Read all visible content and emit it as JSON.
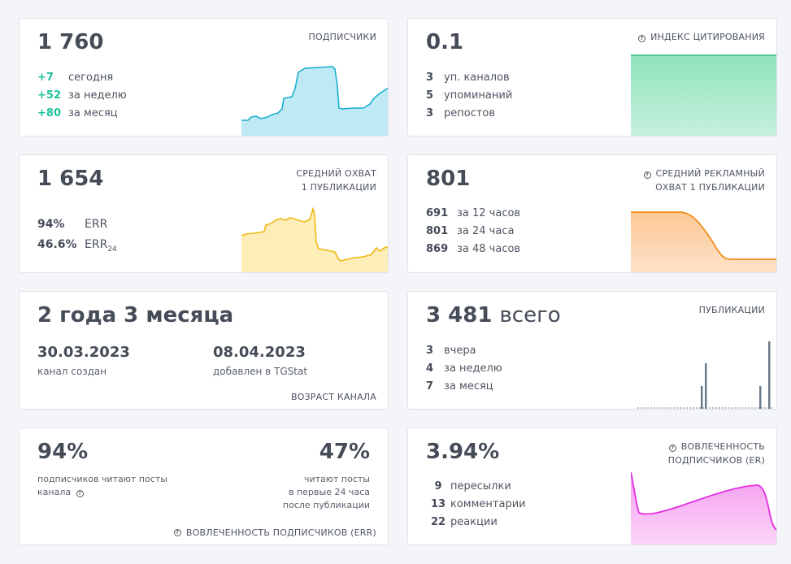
{
  "subscribers": {
    "value": "1 760",
    "title": "ПОДПИСЧИКИ",
    "colors": {
      "line": "#1aaed0",
      "fill": "#a9e3f1"
    },
    "rows": [
      {
        "n": "+7",
        "label": "сегодня"
      },
      {
        "n": "+52",
        "label": "за неделю"
      },
      {
        "n": "+80",
        "label": "за месяц"
      }
    ]
  },
  "citation": {
    "value": "0.1",
    "title": "ИНДЕКС ЦИТИРОВАНИЯ",
    "help_icon": "help-circle-icon",
    "colors": {
      "line": "#37b37e",
      "fill": "#8fe3bd"
    },
    "rows": [
      {
        "n": "3",
        "label": "уп. каналов"
      },
      {
        "n": "5",
        "label": "упоминаний"
      },
      {
        "n": "3",
        "label": "репостов"
      }
    ]
  },
  "avg_reach": {
    "value": "1 654",
    "title_line1": "СРЕДНИЙ ОХВАТ",
    "title_line2": "1 ПУБЛИКАЦИИ",
    "colors": {
      "line": "#efb913",
      "fill": "#fde8a6"
    },
    "rows": [
      {
        "n": "94%",
        "label": "ERR"
      },
      {
        "n": "46.6%",
        "label": "ERR",
        "sub": "24"
      }
    ]
  },
  "ad_reach": {
    "value": "801",
    "title_line1": "СРЕДНИЙ РЕКЛАМНЫЙ",
    "title_line2": "ОХВАТ 1 ПУБЛИКАЦИИ",
    "help_icon": "help-circle-icon",
    "colors": {
      "line": "#f08d1c",
      "fill": "#fcd0a4"
    },
    "rows": [
      {
        "n": "691",
        "label": "за 12 часов"
      },
      {
        "n": "801",
        "label": "за 24 часа"
      },
      {
        "n": "869",
        "label": "за 48 часов"
      }
    ]
  },
  "age": {
    "value": "2 года 3 месяца",
    "created_date": "30.03.2023",
    "created_label": "канал создан",
    "added_date": "08.04.2023",
    "added_label": "добавлен в TGStat",
    "title": "ВОЗРАСТ КАНАЛА"
  },
  "posts": {
    "value": "3 481",
    "value_suffix": "всего",
    "title": "ПУБЛИКАЦИИ",
    "colors": {
      "bar": "#6b7c8c"
    },
    "rows": [
      {
        "n": "3",
        "label": "вчера"
      },
      {
        "n": "4",
        "label": "за неделю"
      },
      {
        "n": "7",
        "label": "за месяц"
      }
    ]
  },
  "err": {
    "left_value": "94%",
    "left_label_line1": "подписчиков читают посты",
    "left_label_line2": "канала",
    "right_value": "47%",
    "right_label_line1": "читают посты",
    "right_label_line2": "в первые 24 часа",
    "right_label_line3": "после публикации",
    "title": "ВОВЛЕЧЕННОСТЬ ПОДПИСЧИКОВ (ERR)",
    "help_icon": "help-circle-icon"
  },
  "er": {
    "value": "3.94%",
    "title_line1": "ВОВЛЕЧЕННОСТЬ",
    "title_line2": "ПОДПИСЧИКОВ (ER)",
    "help_icon": "help-circle-icon",
    "colors": {
      "line": "#e22fe0",
      "fill": "#f7b2f3"
    },
    "rows": [
      {
        "n": "9",
        "label": "пересылки"
      },
      {
        "n": "13",
        "label": "комментарии"
      },
      {
        "n": "22",
        "label": "реакции"
      }
    ]
  }
}
